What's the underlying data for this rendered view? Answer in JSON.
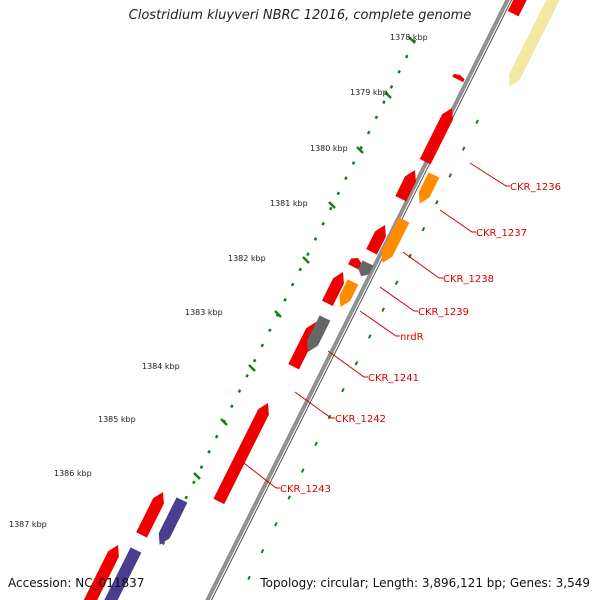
{
  "title": "Clostridium kluyveri NBRC 12016, complete genome",
  "accession": "Accession: NC_011837",
  "summary": "Topology: circular; Length: 3,896,121 bp; Genes: 3,549",
  "colors": {
    "backbone": "#909090",
    "backbone_inner": "#555555",
    "gene_red": "#ee0000",
    "gene_orange": "#ff8c00",
    "gene_gray": "#666666",
    "gene_purple": "#4a3d8f",
    "gene_yellow": "#f2e8a2",
    "tick_dark": "#1a7a1a",
    "label_red": "#d40000"
  },
  "scale_ticks": [
    "1378 kbp",
    "1379 kbp",
    "1380 kbp",
    "1381 kbp",
    "1382 kbp",
    "1383 kbp",
    "1384 kbp",
    "1385 kbp",
    "1386 kbp",
    "1387 kbp"
  ],
  "gene_labels": [
    "CKR_1236",
    "CKR_1237",
    "CKR_1238",
    "CKR_1239",
    "nrdR",
    "CKR_1241",
    "CKR_1242",
    "CKR_1243"
  ]
}
